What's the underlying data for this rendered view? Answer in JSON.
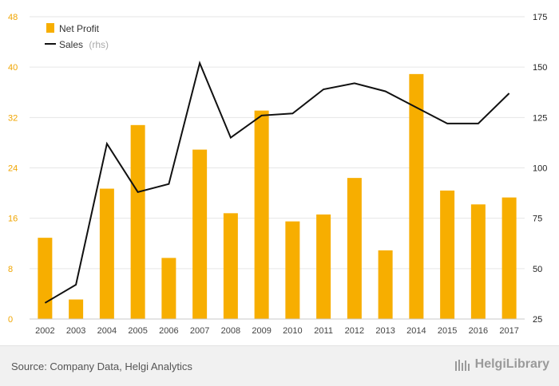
{
  "chart_data": {
    "type": "bar+line",
    "categories": [
      "2002",
      "2003",
      "2004",
      "2005",
      "2006",
      "2007",
      "2008",
      "2009",
      "2010",
      "2011",
      "2012",
      "2013",
      "2014",
      "2015",
      "2016",
      "2017"
    ],
    "series": [
      {
        "name": "Net Profit",
        "type": "bar",
        "axis": "left",
        "color": "#f7ae00",
        "values": [
          12.9,
          3.1,
          20.7,
          30.8,
          9.7,
          26.9,
          16.8,
          33.1,
          15.5,
          16.6,
          22.4,
          10.9,
          38.9,
          20.4,
          18.2,
          19.3
        ]
      },
      {
        "name": "Sales",
        "name_suffix": "(rhs)",
        "type": "line",
        "axis": "right",
        "color": "#111111",
        "values": [
          33,
          42,
          112,
          88,
          92,
          152,
          115,
          126,
          127,
          139,
          142,
          138,
          130,
          122,
          122,
          137
        ]
      }
    ],
    "y_left": {
      "ticks": [
        0,
        8,
        16,
        24,
        32,
        40,
        48
      ],
      "range": [
        0,
        48
      ]
    },
    "y_right": {
      "ticks": [
        25,
        50,
        75,
        100,
        125,
        150,
        175
      ],
      "range": [
        25,
        175
      ]
    },
    "grid": true,
    "legend": "top-left"
  },
  "footer": {
    "source": "Source: Company Data, Helgi Analytics",
    "brand": "HelgiLibrary"
  }
}
